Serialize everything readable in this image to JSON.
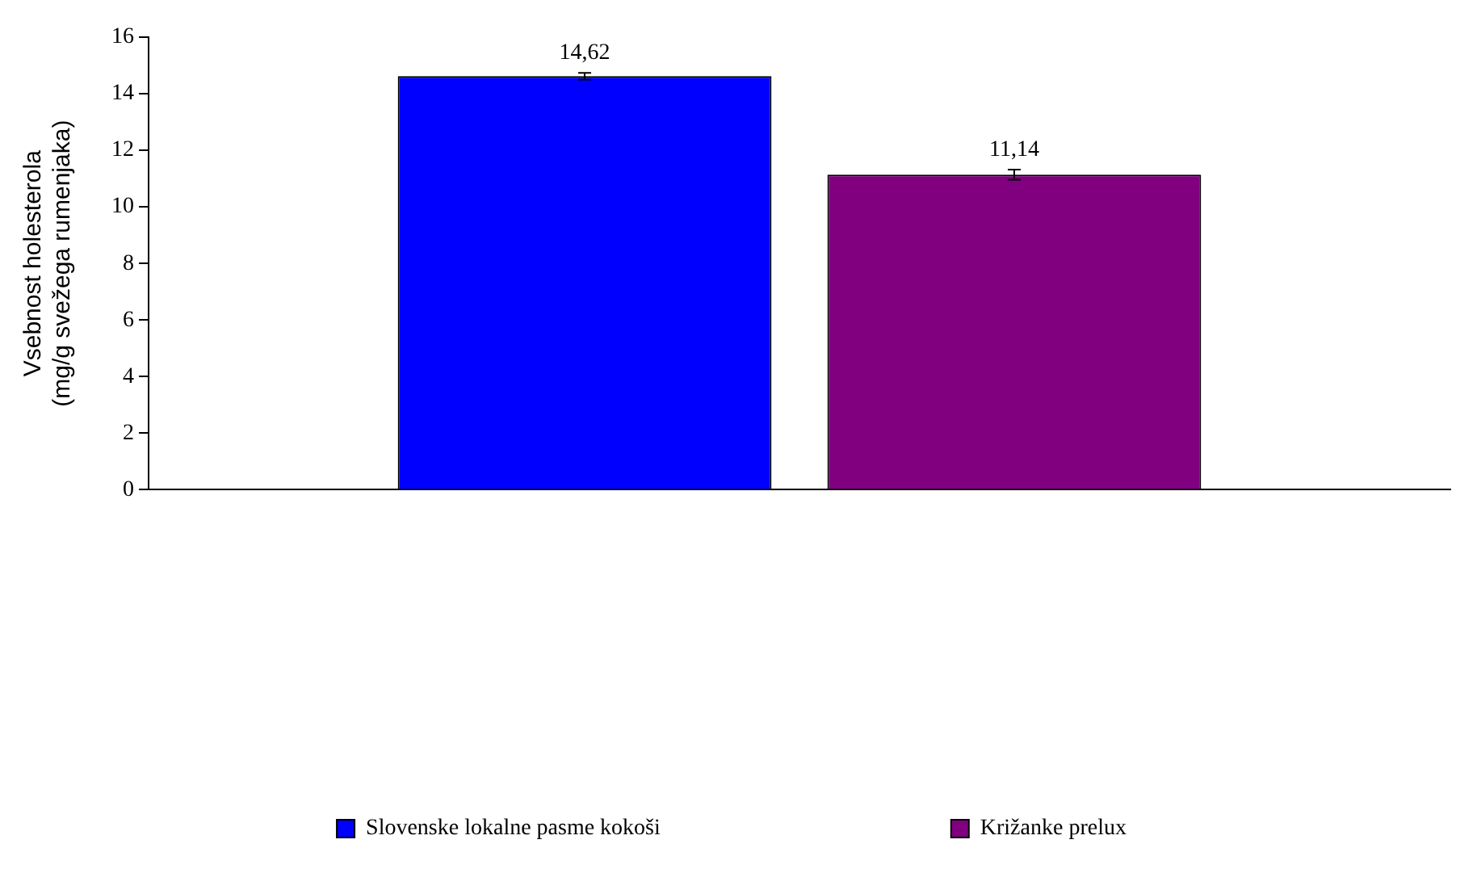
{
  "chart_data": {
    "type": "bar",
    "ylabel": "Vsebnost holesterola\n(mg/g svežega rumenjaka)",
    "categories": [
      null
    ],
    "series": [
      {
        "name": "Slovenske lokalne pasme kokoši",
        "color": "#0000ff",
        "values": [
          14.62
        ],
        "errors": [
          0.12
        ],
        "value_labels": [
          "14,62"
        ]
      },
      {
        "name": "Križanke prelux",
        "color": "#800080",
        "values": [
          11.14
        ],
        "errors": [
          0.18
        ],
        "value_labels": [
          "11,14"
        ]
      }
    ],
    "ylim": [
      0,
      16
    ],
    "yticks": [
      0,
      2,
      4,
      6,
      8,
      10,
      12,
      14,
      16
    ],
    "grid": false,
    "legend": "bottom"
  }
}
